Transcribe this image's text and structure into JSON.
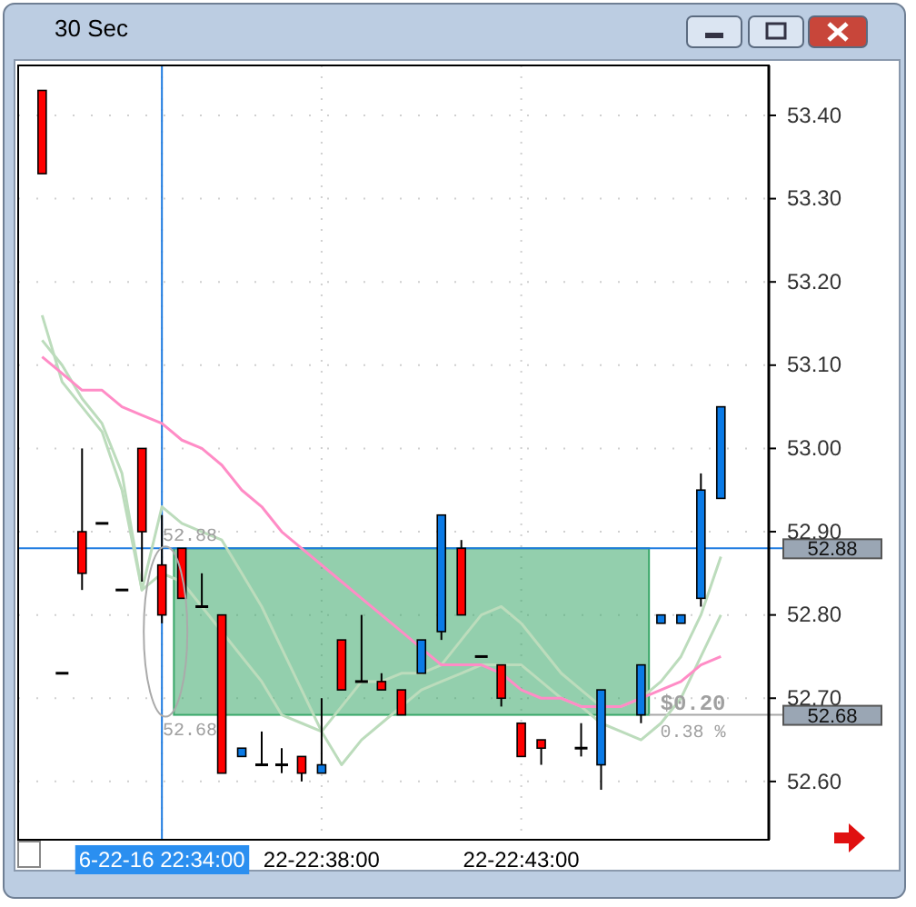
{
  "chart_data": {
    "type": "candlestick",
    "title": "30 Sec",
    "categories": [
      null,
      null,
      null,
      null,
      null,
      null,
      "6-22-16 22:34:00",
      null,
      null,
      null,
      null,
      null,
      null,
      null,
      "22-22:38:00",
      null,
      null,
      null,
      null,
      null,
      null,
      null,
      null,
      null,
      "22-22:43:00",
      null,
      null,
      null,
      null,
      null,
      null,
      null,
      null,
      null,
      null
    ],
    "ohlc": [
      [
        53.43,
        53.43,
        53.33,
        53.33
      ],
      [
        52.73,
        52.73,
        52.73,
        52.73
      ],
      [
        52.9,
        53.0,
        52.83,
        52.85
      ],
      [
        52.91,
        52.91,
        52.91,
        52.91
      ],
      [
        52.83,
        52.83,
        52.83,
        52.83
      ],
      [
        53.0,
        53.0,
        52.84,
        52.9
      ],
      [
        52.86,
        52.92,
        52.79,
        52.8
      ],
      [
        52.88,
        52.88,
        52.82,
        52.82
      ],
      [
        52.81,
        52.85,
        52.81,
        52.81
      ],
      [
        52.8,
        52.8,
        52.61,
        52.61
      ],
      [
        52.63,
        52.64,
        52.63,
        52.64
      ],
      [
        52.62,
        52.66,
        52.62,
        52.62
      ],
      [
        52.62,
        52.64,
        52.61,
        52.62
      ],
      [
        52.63,
        52.63,
        52.6,
        52.61
      ],
      [
        52.61,
        52.7,
        52.61,
        52.62
      ],
      [
        52.77,
        52.77,
        52.71,
        52.71
      ],
      [
        52.72,
        52.8,
        52.72,
        52.72
      ],
      [
        52.72,
        52.73,
        52.71,
        52.71
      ],
      [
        52.71,
        52.71,
        52.68,
        52.68
      ],
      [
        52.73,
        52.77,
        52.73,
        52.77
      ],
      [
        52.78,
        52.92,
        52.77,
        52.92
      ],
      [
        52.88,
        52.89,
        52.8,
        52.8
      ],
      [
        52.75,
        52.75,
        52.75,
        52.75
      ],
      [
        52.74,
        52.74,
        52.69,
        52.7
      ],
      [
        52.67,
        52.67,
        52.63,
        52.63
      ],
      [
        52.65,
        52.65,
        52.62,
        52.64
      ],
      null,
      [
        52.64,
        52.67,
        52.63,
        52.64
      ],
      [
        52.62,
        52.71,
        52.59,
        52.71
      ],
      null,
      [
        52.68,
        52.74,
        52.67,
        52.74
      ],
      [
        52.79,
        52.8,
        52.79,
        52.8
      ],
      [
        52.79,
        52.8,
        52.79,
        52.8
      ],
      [
        52.82,
        52.97,
        52.81,
        52.95
      ],
      [
        52.94,
        53.05,
        52.94,
        53.05
      ]
    ],
    "colors": [
      "#ff0000",
      "#000000",
      "#ff0000",
      "#000000",
      "#000000",
      "#ff0000",
      "#ff0000",
      "#ff0000",
      "#000000",
      "#ff0000",
      "#0a7ae6",
      "#000000",
      "#000000",
      "#ff0000",
      "#0a7ae6",
      "#ff0000",
      "#000000",
      "#ff0000",
      "#ff0000",
      "#0a7ae6",
      "#0a7ae6",
      "#ff0000",
      "#000000",
      "#ff0000",
      "#ff0000",
      "#ff0000",
      null,
      "#000000",
      "#0a7ae6",
      null,
      "#0a7ae6",
      "#0a7ae6",
      "#0a7ae6",
      "#0a7ae6",
      "#0a7ae6"
    ],
    "series": [
      {
        "type": "line",
        "color": "#ff8cc6",
        "values": [
          53.11,
          53.09,
          53.07,
          53.07,
          53.05,
          53.04,
          53.03,
          53.01,
          53.0,
          52.98,
          52.95,
          52.93,
          52.9,
          52.88,
          52.86,
          52.84,
          52.82,
          52.8,
          52.78,
          52.76,
          52.74,
          52.74,
          52.74,
          52.73,
          52.71,
          52.7,
          52.7,
          52.69,
          52.69,
          52.69,
          52.7,
          52.71,
          52.72,
          52.74,
          52.75
        ]
      },
      {
        "type": "line",
        "color": "#bcdcbc",
        "values": [
          53.16,
          53.08,
          53.05,
          53.02,
          52.95,
          52.83,
          52.93,
          52.91,
          52.9,
          52.89,
          52.85,
          52.81,
          52.76,
          52.71,
          52.66,
          52.69,
          52.72,
          52.72,
          52.73,
          52.73,
          52.74,
          52.77,
          52.8,
          52.81,
          52.79,
          52.76,
          52.73,
          52.71,
          52.69,
          52.69,
          52.7,
          52.72,
          52.75,
          52.8,
          52.87
        ]
      },
      {
        "type": "line",
        "color": "#bcdcbc",
        "values": [
          53.13,
          53.1,
          53.06,
          53.03,
          52.97,
          52.83,
          52.85,
          52.84,
          52.81,
          52.78,
          52.75,
          52.72,
          52.68,
          52.67,
          52.66,
          52.62,
          52.65,
          52.67,
          52.69,
          52.71,
          52.72,
          52.73,
          52.74,
          52.74,
          52.74,
          52.72,
          52.7,
          52.69,
          52.67,
          52.66,
          52.65,
          52.67,
          52.7,
          52.75,
          52.8
        ]
      }
    ],
    "ylim": [
      52.53,
      53.46
    ],
    "yticks": [
      {
        "value": 52.6,
        "label": "52.60"
      },
      {
        "value": 52.7,
        "label": "52.70"
      },
      {
        "value": 52.8,
        "label": "52.80"
      },
      {
        "value": 52.9,
        "label": "52.90"
      },
      {
        "value": 53.0,
        "label": "53.00"
      },
      {
        "value": 53.1,
        "label": "53.10"
      },
      {
        "value": 53.2,
        "label": "53.20"
      },
      {
        "value": 53.3,
        "label": "53.30"
      },
      {
        "value": 53.4,
        "label": "53.40"
      }
    ],
    "grid": true,
    "ref_lines": [
      {
        "axis": "y",
        "value": 52.88,
        "label": "52.88",
        "color": "#1e7be0"
      },
      {
        "axis": "y",
        "value": 52.68,
        "label": "52.68",
        "color": "#a8a8a8"
      },
      {
        "axis": "x",
        "value": "6-22-16 22:34:00",
        "color": "#1e7be0"
      }
    ],
    "bands": [
      {
        "axis": "y",
        "from": 52.68,
        "to": 52.88,
        "label": "$0.20",
        "color": "#3aa86a"
      }
    ],
    "annotations": [
      {
        "text": "52.88",
        "y": 52.88
      },
      {
        "text": "52.68",
        "y": 52.68
      },
      {
        "text": "0.38 %",
        "y": 52.68
      }
    ]
  }
}
